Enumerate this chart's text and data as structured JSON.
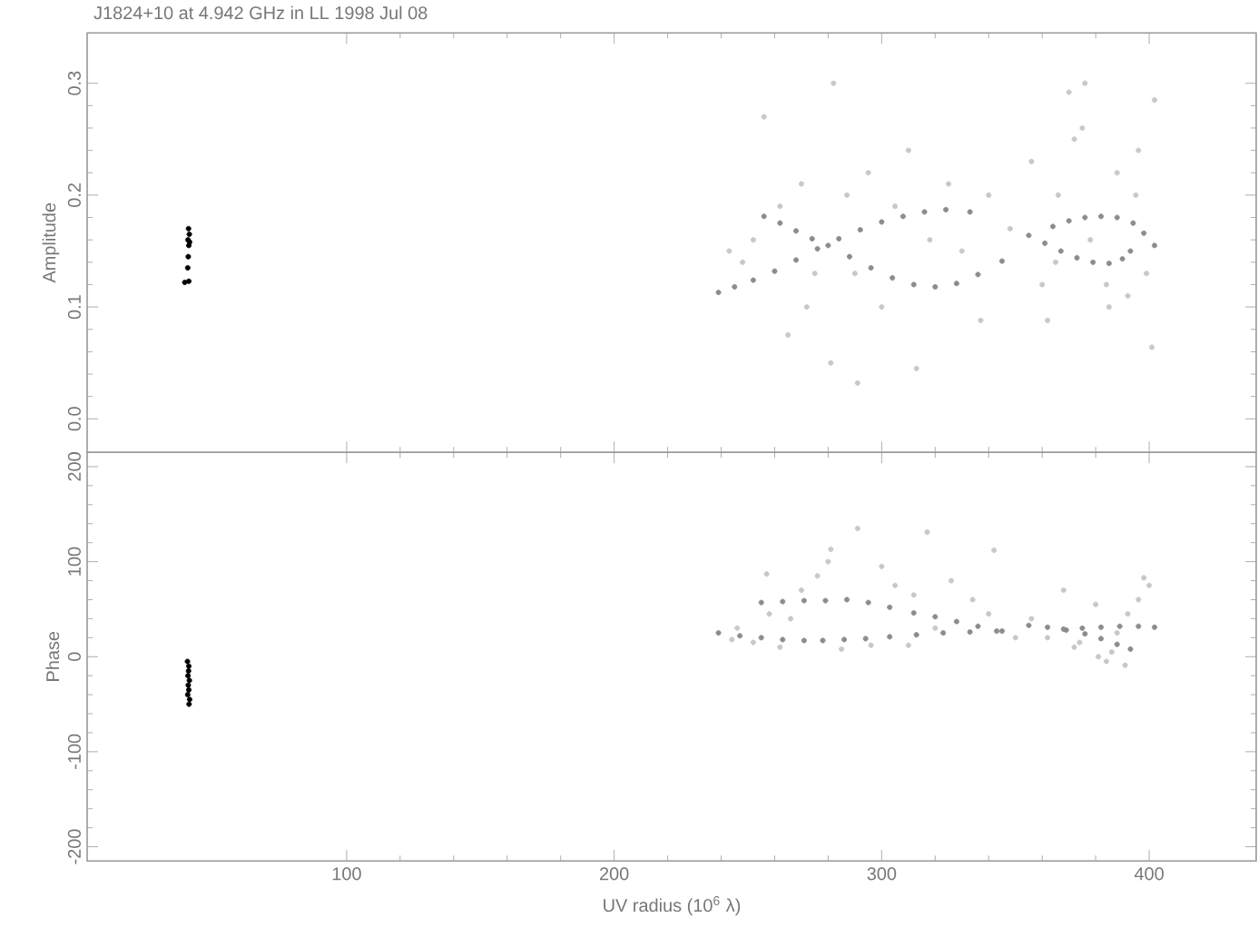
{
  "chart_data": [
    {
      "type": "scatter",
      "title": "J1824+10 at 4.942 GHz in LL  1998 Jul 08",
      "ylabel": "Amplitude",
      "xlim": [
        3,
        440
      ],
      "xticks": [
        100,
        200,
        300,
        400
      ],
      "ylim": [
        -0.03,
        0.345
      ],
      "yticks": [
        {
          "value": 0,
          "label": "0.0"
        },
        {
          "value": 0.1,
          "label": "0.1"
        },
        {
          "value": 0.2,
          "label": "0.2"
        },
        {
          "value": 0.3,
          "label": "0.3"
        }
      ],
      "tick_labels": "y",
      "marker": "circle",
      "series": [
        {
          "color": "#c8c8c8",
          "x": [
            256,
            282,
            370,
            376,
            402,
            291,
            313,
            401,
            265,
            281,
            337,
            362,
            248,
            252,
            262,
            270,
            275,
            287,
            295,
            300,
            305,
            318,
            325,
            330,
            340,
            348,
            356,
            360,
            366,
            372,
            378,
            384,
            388,
            392,
            396,
            399,
            385,
            375,
            365,
            310,
            290,
            272,
            243,
            395
          ],
          "values": [
            0.27,
            0.3,
            0.292,
            0.3,
            0.285,
            0.032,
            0.045,
            0.064,
            0.075,
            0.05,
            0.088,
            0.088,
            0.14,
            0.16,
            0.19,
            0.21,
            0.13,
            0.2,
            0.22,
            0.1,
            0.19,
            0.16,
            0.21,
            0.15,
            0.2,
            0.17,
            0.23,
            0.12,
            0.2,
            0.25,
            0.16,
            0.12,
            0.22,
            0.11,
            0.24,
            0.13,
            0.1,
            0.26,
            0.14,
            0.24,
            0.13,
            0.1,
            0.15,
            0.2
          ]
        },
        {
          "color": "#8c8c8c",
          "x": [
            239,
            245,
            252,
            260,
            268,
            276,
            284,
            292,
            300,
            308,
            316,
            324,
            333,
            256,
            262,
            268,
            274,
            280,
            288,
            296,
            304,
            312,
            320,
            328,
            336,
            345,
            355,
            361,
            367,
            373,
            379,
            385,
            390,
            393,
            364,
            370,
            376,
            382,
            388,
            394,
            398,
            402
          ],
          "values": [
            0.113,
            0.118,
            0.124,
            0.132,
            0.142,
            0.152,
            0.161,
            0.169,
            0.176,
            0.181,
            0.185,
            0.187,
            0.185,
            0.181,
            0.175,
            0.168,
            0.161,
            0.155,
            0.145,
            0.135,
            0.126,
            0.12,
            0.118,
            0.121,
            0.129,
            0.141,
            0.164,
            0.157,
            0.15,
            0.144,
            0.14,
            0.139,
            0.143,
            0.15,
            0.172,
            0.177,
            0.18,
            0.181,
            0.18,
            0.175,
            0.166,
            0.155
          ]
        },
        {
          "color": "#000000",
          "x": [
            39.5,
            41,
            40.6,
            40.8,
            41,
            40.7,
            41.2,
            40.9,
            41.3
          ],
          "values": [
            0.122,
            0.123,
            0.135,
            0.145,
            0.155,
            0.16,
            0.165,
            0.17,
            0.158
          ]
        }
      ]
    },
    {
      "type": "scatter",
      "xlabel": "UV radius  (10$^{6}$ λ)",
      "ylabel": "Phase",
      "xlim": [
        3,
        440
      ],
      "xticks": [
        100,
        200,
        300,
        400
      ],
      "ylim": [
        -215,
        215
      ],
      "yticks": [
        -200,
        -100,
        0,
        100,
        200
      ],
      "marker": "circle",
      "series": [
        {
          "color": "#c8c8c8",
          "x": [
            291,
            317,
            342,
            281,
            257,
            398,
            391,
            381,
            246,
            252,
            262,
            270,
            276,
            285,
            296,
            305,
            312,
            326,
            334,
            340,
            356,
            362,
            368,
            374,
            380,
            386,
            392,
            396,
            400,
            266,
            300,
            320,
            258,
            280,
            350,
            388,
            384,
            372,
            244,
            310
          ],
          "values": [
            135,
            131,
            112,
            113,
            87,
            83,
            -9,
            0,
            30,
            15,
            10,
            70,
            85,
            8,
            12,
            75,
            65,
            80,
            60,
            45,
            40,
            20,
            70,
            15,
            55,
            5,
            45,
            60,
            75,
            40,
            95,
            30,
            45,
            100,
            20,
            25,
            -5,
            10,
            18,
            12
          ]
        },
        {
          "color": "#8c8c8c",
          "x": [
            255,
            263,
            271,
            279,
            287,
            295,
            303,
            312,
            320,
            328,
            336,
            345,
            239,
            247,
            255,
            263,
            271,
            278,
            286,
            294,
            303,
            313,
            323,
            333,
            343,
            355,
            362,
            369,
            376,
            382,
            388,
            393,
            368,
            375,
            382,
            389,
            396,
            402
          ],
          "values": [
            57,
            58,
            59,
            59,
            60,
            57,
            52,
            46,
            42,
            37,
            32,
            27,
            25,
            22,
            20,
            18,
            17,
            17,
            18,
            19,
            21,
            23,
            25,
            26,
            27,
            33,
            31,
            28,
            24,
            19,
            13,
            8,
            29,
            30,
            31,
            32,
            32,
            31
          ]
        },
        {
          "color": "#000000",
          "x": [
            40.5,
            41,
            40.7,
            41.2,
            40.8,
            41,
            40.6,
            41.3,
            40.9,
            41.1
          ],
          "values": [
            -5,
            -10,
            -20,
            -25,
            -30,
            -35,
            -40,
            -45,
            -15,
            -50
          ]
        }
      ]
    }
  ]
}
